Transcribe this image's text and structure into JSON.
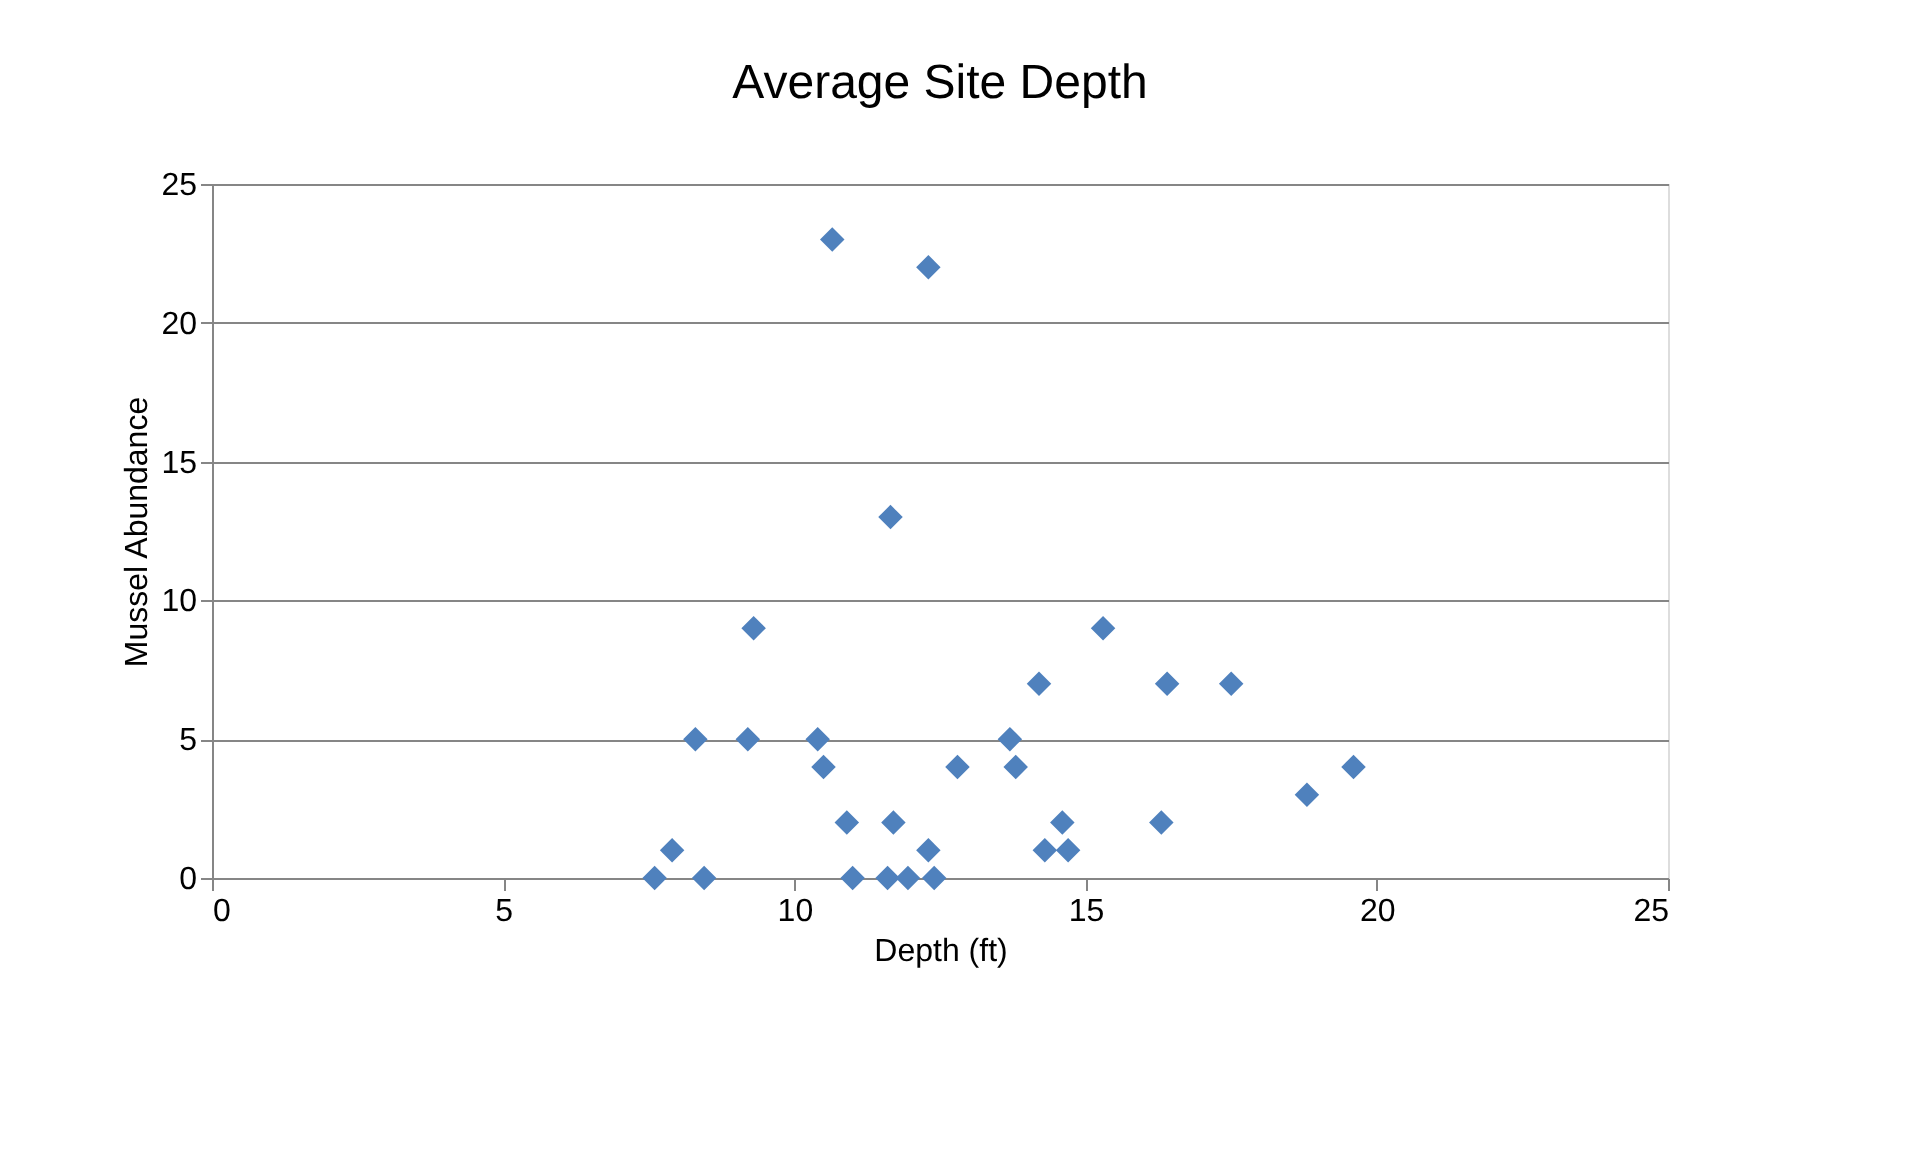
{
  "chart_data": {
    "type": "scatter",
    "title": "Average Site Depth",
    "xlabel": "Depth (ft)",
    "ylabel": "Mussel Abundance",
    "x": [
      7.6,
      7.9,
      8.45,
      8.3,
      9.2,
      9.3,
      10.4,
      10.5,
      10.65,
      10.9,
      11.0,
      11.6,
      11.65,
      11.7,
      11.95,
      12.3,
      12.3,
      12.4,
      12.8,
      13.7,
      13.8,
      14.2,
      14.3,
      14.6,
      14.7,
      15.3,
      16.3,
      16.4,
      17.5,
      18.8,
      19.6
    ],
    "series": [
      {
        "color": "#4f81bd",
        "values": [
          0,
          1,
          0,
          5,
          5,
          9,
          5,
          4,
          23,
          2,
          0,
          0,
          13,
          2,
          0,
          22,
          1,
          0,
          4,
          5,
          4,
          7,
          1,
          2,
          1,
          9,
          2,
          7,
          7,
          3,
          4
        ]
      }
    ],
    "xlim": [
      0,
      25
    ],
    "xticks": [
      0,
      5,
      10,
      15,
      20,
      25
    ],
    "ylim": [
      0,
      25
    ],
    "yticks": [
      0,
      5,
      10,
      15,
      20,
      25
    ],
    "grid": "y",
    "marker": "diamond"
  }
}
